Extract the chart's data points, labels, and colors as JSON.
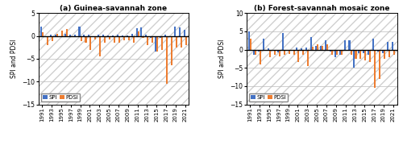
{
  "years": [
    1991,
    1992,
    1993,
    1994,
    1995,
    1996,
    1997,
    1998,
    1999,
    2000,
    2001,
    2002,
    2003,
    2004,
    2005,
    2006,
    2007,
    2008,
    2009,
    2010,
    2011,
    2012,
    2013,
    2014,
    2015,
    2016,
    2017,
    2018,
    2019,
    2020,
    2021
  ],
  "panel_a": {
    "title": "(a) Guinea-savannah zone",
    "SPI": [
      2.0,
      -0.3,
      0.3,
      0.2,
      -0.2,
      0.5,
      0.2,
      0.2,
      2.0,
      0.2,
      0.3,
      -0.2,
      0.3,
      0.3,
      0.1,
      0.1,
      0.3,
      0.1,
      0.1,
      0.5,
      1.6,
      1.8,
      0.2,
      -0.5,
      -3.5,
      -0.4,
      0.3,
      -0.3,
      2.0,
      1.8,
      1.3
    ],
    "PDSI": [
      0.8,
      -2.0,
      -1.2,
      0.5,
      1.2,
      1.5,
      -0.3,
      -0.3,
      -1.2,
      -1.5,
      -3.0,
      -0.8,
      -4.5,
      -1.5,
      -0.8,
      -1.5,
      -1.5,
      -1.0,
      -1.0,
      -1.5,
      1.0,
      -0.5,
      -2.0,
      -1.5,
      -3.5,
      -3.0,
      -10.5,
      -6.5,
      -2.5,
      -2.5,
      -2.0
    ]
  },
  "panel_b": {
    "title": "(b) Forest-savannah mosaic zone",
    "SPI": [
      5.0,
      -1.5,
      -0.5,
      3.0,
      0.3,
      -0.3,
      -0.8,
      4.5,
      -0.4,
      -0.2,
      0.5,
      0.3,
      0.5,
      3.5,
      1.0,
      1.0,
      2.5,
      -0.5,
      -2.0,
      -1.5,
      2.5,
      2.5,
      -5.0,
      -1.0,
      -1.0,
      -1.5,
      3.0,
      -0.5,
      -1.0,
      2.0,
      2.2
    ],
    "PDSI": [
      3.0,
      -1.5,
      -4.0,
      0.0,
      -2.0,
      -1.5,
      -1.8,
      -1.5,
      -1.2,
      -1.5,
      -3.5,
      -1.5,
      -4.5,
      0.8,
      1.5,
      1.0,
      1.5,
      -1.5,
      -1.5,
      -1.5,
      0.0,
      -1.5,
      -2.5,
      -2.5,
      -3.0,
      -3.5,
      -10.5,
      -8.0,
      -2.5,
      -2.0,
      -1.5
    ]
  },
  "spi_color": "#4472C4",
  "pdsi_color": "#ED7D31",
  "ylim_a": [
    -15,
    5
  ],
  "ylim_b": [
    -15,
    10
  ],
  "yticks_a": [
    -15,
    -10,
    -5,
    0,
    5
  ],
  "yticks_b": [
    -15,
    -10,
    -5,
    0,
    5,
    10
  ],
  "ylabel": "SPI and PDSI",
  "bar_width": 0.35,
  "grid_color": "#bbbbbb",
  "bg_color": "#ffffff"
}
